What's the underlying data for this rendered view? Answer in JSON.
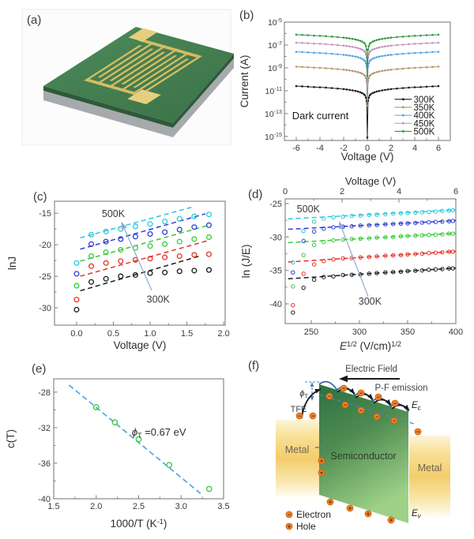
{
  "panel_a": {
    "label": "(a)",
    "description": "interdigitated-electrode device on green substrate"
  },
  "panel_f": {
    "label": "(f)",
    "electric_field": "Electric Field",
    "pf_emission": "P-F emission",
    "tfe": "TFE",
    "metal_left": "Metal",
    "metal_right": "Metal",
    "semiconductor": "Semiconductor",
    "ec_main": "E",
    "ec_sub": "c",
    "ev_main": "E",
    "ev_sub": "v",
    "phi_main": "ϕ",
    "phi_sub": "T",
    "legend_electron": "Electron",
    "legend_hole": "Hole",
    "electron_symbol": "−",
    "hole_symbol": "+"
  },
  "colors": {
    "k300": "#1c1c1c",
    "k350": "#b3966a",
    "k400": "#53a4e8",
    "k450": "#c78fc2",
    "k500": "#2f9a3c",
    "c_black": "#1c1c1c",
    "c_red": "#e83028",
    "c_green": "#37cc37",
    "c_blue": "#2f3bd4",
    "c_cyan": "#29c8dc",
    "fit_blue": "#58abe0",
    "arrow_blue": "#90a9d2",
    "orange": "#ef8125",
    "substrate_green": "#458053",
    "gold": "#d8bc60"
  },
  "chart_data": [
    {
      "id": "b",
      "type": "line",
      "panel_label": "(b)",
      "label_pos": [
        3,
        16
      ],
      "size": [
        300,
        214
      ],
      "plot": [
        60,
        20,
        210,
        150
      ],
      "xlim": [
        -7,
        7
      ],
      "ylim": [
        -15.35,
        -5.0
      ],
      "xticks": [
        -6,
        -4,
        -2,
        0,
        2,
        4,
        6
      ],
      "xminor": [
        -5,
        -3,
        -1,
        1,
        3,
        5
      ],
      "ylog": true,
      "yticks": [
        -5,
        -7,
        -9,
        -11,
        -13,
        -15
      ],
      "yminor": [
        -6,
        -8,
        -10,
        -12,
        -14
      ],
      "xlabel": "Voltage (V)",
      "xlabel_y": 195,
      "xtick_y": 183,
      "ylabel": "Current (A)",
      "ylabel_x": 14,
      "connect": true,
      "marker": "square",
      "msize": 2.3,
      "mstroke": 1,
      "x": [
        -6,
        -5.5,
        -5,
        -4.5,
        -4,
        -3.5,
        -3,
        -2.5,
        -2,
        -1.75,
        -1.5,
        -1.25,
        -1,
        -0.8,
        -0.6,
        -0.45,
        -0.3,
        -0.2,
        -0.12,
        -0.06,
        0,
        0.06,
        0.12,
        0.2,
        0.3,
        0.45,
        0.6,
        0.8,
        1,
        1.25,
        1.5,
        1.75,
        2,
        2.5,
        3,
        3.5,
        4,
        4.5,
        5,
        5.5,
        6
      ],
      "series": [
        {
          "name": "300K",
          "color": "#1c1c1c",
          "y": [
            -10.6,
            -10.62,
            -10.65,
            -10.68,
            -10.7,
            -10.73,
            -10.77,
            -10.81,
            -10.86,
            -10.89,
            -10.93,
            -10.97,
            -11.02,
            -11.07,
            -11.14,
            -11.2,
            -11.3,
            -11.4,
            -11.6,
            -11.9,
            -15.1,
            -11.9,
            -11.6,
            -11.4,
            -11.3,
            -11.2,
            -11.14,
            -11.07,
            -11.02,
            -10.97,
            -10.93,
            -10.89,
            -10.86,
            -10.81,
            -10.77,
            -10.73,
            -10.7,
            -10.68,
            -10.65,
            -10.62,
            -10.6
          ]
        },
        {
          "name": "350K",
          "color": "#b3966a",
          "y": [
            -8.9,
            -8.92,
            -8.95,
            -8.98,
            -9.0,
            -9.03,
            -9.07,
            -9.11,
            -9.16,
            -9.19,
            -9.23,
            -9.27,
            -9.32,
            -9.37,
            -9.44,
            -9.5,
            -9.6,
            -9.7,
            -9.9,
            -10.2,
            -12.3,
            -10.2,
            -9.9,
            -9.7,
            -9.6,
            -9.5,
            -9.44,
            -9.37,
            -9.32,
            -9.27,
            -9.23,
            -9.19,
            -9.16,
            -9.11,
            -9.07,
            -9.03,
            -9.0,
            -8.98,
            -8.95,
            -8.92,
            -8.9
          ]
        },
        {
          "name": "400K",
          "color": "#53a4e8",
          "y": [
            -7.6,
            -7.62,
            -7.65,
            -7.68,
            -7.7,
            -7.73,
            -7.77,
            -7.81,
            -7.86,
            -7.89,
            -7.93,
            -7.97,
            -8.02,
            -8.07,
            -8.14,
            -8.2,
            -8.3,
            -8.4,
            -8.6,
            -8.9,
            -11.2,
            -8.9,
            -8.6,
            -8.4,
            -8.3,
            -8.2,
            -8.14,
            -8.07,
            -8.02,
            -7.97,
            -7.93,
            -7.89,
            -7.86,
            -7.81,
            -7.77,
            -7.73,
            -7.7,
            -7.68,
            -7.65,
            -7.62,
            -7.6
          ]
        },
        {
          "name": "450K",
          "color": "#c78fc2",
          "y": [
            -6.8,
            -6.82,
            -6.85,
            -6.88,
            -6.9,
            -6.93,
            -6.97,
            -7.01,
            -7.06,
            -7.09,
            -7.13,
            -7.17,
            -7.22,
            -7.27,
            -7.34,
            -7.4,
            -7.5,
            -7.6,
            -7.8,
            -8.1,
            -10.5,
            -8.1,
            -7.8,
            -7.6,
            -7.5,
            -7.4,
            -7.34,
            -7.27,
            -7.22,
            -7.17,
            -7.13,
            -7.09,
            -7.06,
            -7.01,
            -6.97,
            -6.93,
            -6.9,
            -6.88,
            -6.85,
            -6.82,
            -6.8
          ]
        },
        {
          "name": "500K",
          "color": "#2f9a3c",
          "y": [
            -6.1,
            -6.12,
            -6.15,
            -6.18,
            -6.2,
            -6.23,
            -6.27,
            -6.31,
            -6.36,
            -6.39,
            -6.43,
            -6.47,
            -6.52,
            -6.57,
            -6.64,
            -6.7,
            -6.8,
            -6.9,
            -7.1,
            -7.4,
            -9.7,
            -7.4,
            -7.1,
            -6.9,
            -6.8,
            -6.7,
            -6.64,
            -6.57,
            -6.52,
            -6.47,
            -6.43,
            -6.39,
            -6.36,
            -6.31,
            -6.27,
            -6.23,
            -6.2,
            -6.18,
            -6.15,
            -6.12,
            -6.1
          ]
        }
      ],
      "texts": [
        {
          "text": "Dark current",
          "x": -6.35,
          "y": -13.5,
          "size": 13,
          "anchor": "start",
          "color": "#1a1a1a"
        }
      ],
      "legend": {
        "line_x": [
          2.3,
          3.75
        ],
        "text_x": 3.9,
        "font": 11.5,
        "rows": [
          {
            "label": "300K",
            "color": "#1c1c1c",
            "y": -11.75
          },
          {
            "label": "350K",
            "color": "#b3966a",
            "y": -12.45
          },
          {
            "label": "400K",
            "color": "#53a4e8",
            "y": -13.15
          },
          {
            "label": "450K",
            "color": "#c78fc2",
            "y": -13.85
          },
          {
            "label": "500K",
            "color": "#2f9a3c",
            "y": -14.55
          }
        ]
      }
    },
    {
      "id": "c",
      "type": "scatter",
      "panel_label": "(c)",
      "label_pos": [
        42,
        32
      ],
      "size": [
        300,
        230
      ],
      "plot": [
        69,
        33,
        216,
        157
      ],
      "xlim": [
        -0.3,
        2.02
      ],
      "ylim": [
        -32.75,
        -13.1
      ],
      "xticks": [
        0,
        0.5,
        1,
        1.5,
        2
      ],
      "xtick_labels": [
        "0.0",
        "0.5",
        "1.0",
        "1.5",
        "2.0"
      ],
      "xminor": [
        0.25,
        0.75,
        1.25,
        1.75
      ],
      "yticks": [
        -15,
        -20,
        -25,
        -30
      ],
      "yminor": [
        -17.5,
        -22.5,
        -27.5
      ],
      "xlabel": "Voltage (V)",
      "xlabel_y": 220,
      "xtick_y": 204,
      "ylabel": "lnJ",
      "ylabel_x": 20,
      "marker": "circle",
      "msize": 2.9,
      "mstroke": 1.3,
      "x": [
        0,
        0.2,
        0.4,
        0.6,
        0.8,
        1.0,
        1.2,
        1.4,
        1.6,
        1.8
      ],
      "series": [
        {
          "name": "300K",
          "color": "#1c1c1c",
          "y": [
            -30.3,
            -25.9,
            -25.4,
            -25.0,
            -24.8,
            -24.5,
            -24.4,
            -24.2,
            -24.1,
            -24.0
          ]
        },
        {
          "name": "350K",
          "color": "#e83028",
          "y": [
            -28.7,
            -23.4,
            -22.9,
            -22.6,
            -22.4,
            -22.2,
            -22.0,
            -21.8,
            -21.6,
            -21.5
          ]
        },
        {
          "name": "400K",
          "color": "#37cc37",
          "y": [
            -26.5,
            -21.8,
            -21.2,
            -20.8,
            -20.5,
            -20.2,
            -19.9,
            -19.5,
            -19.1,
            -18.8
          ]
        },
        {
          "name": "450K",
          "color": "#2f3bd4",
          "y": [
            -24.6,
            -19.9,
            -19.5,
            -19.1,
            -18.7,
            -18.3,
            -18.0,
            -17.6,
            -17.2,
            -16.9
          ]
        },
        {
          "name": "500K",
          "color": "#29c8dc",
          "y": [
            -22.9,
            -18.4,
            -17.9,
            -17.5,
            -17.1,
            -16.7,
            -16.3,
            -15.9,
            -15.5,
            -15.2
          ]
        }
      ],
      "fits": [
        {
          "x1": 0.05,
          "y1": -27.3,
          "x2": 1.7,
          "y2": -21.7,
          "color": "#1c1c1c"
        },
        {
          "x1": 0.05,
          "y1": -25.0,
          "x2": 1.8,
          "y2": -19.3,
          "color": "#e83028"
        },
        {
          "x1": 0.05,
          "y1": -22.6,
          "x2": 1.8,
          "y2": -16.9,
          "color": "#37cc37"
        },
        {
          "x1": 0.05,
          "y1": -20.7,
          "x2": 1.75,
          "y2": -15.1,
          "color": "#2f3bd4"
        },
        {
          "x1": 0.05,
          "y1": -18.9,
          "x2": 1.58,
          "y2": -14.0,
          "color": "#29c8dc"
        }
      ],
      "texts": [
        {
          "text": "500K",
          "x": 0.5,
          "y": -15.6,
          "size": 12.5,
          "anchor": "middle",
          "color": "#3a3a3a"
        },
        {
          "text": "300K",
          "x": 1.11,
          "y": -29.2,
          "size": 12.5,
          "anchor": "middle",
          "color": "#3a3a3a"
        }
      ],
      "arrows": [
        {
          "x1": 1.02,
          "y1": -27.2,
          "x2": 0.61,
          "y2": -16.4,
          "color": "#90a9d2"
        }
      ]
    },
    {
      "id": "d",
      "type": "scatter",
      "panel_label": "(d)",
      "label_pos": [
        14,
        29
      ],
      "size": [
        300,
        230
      ],
      "plot": [
        61,
        30,
        216,
        158
      ],
      "xlim": [
        223,
        400
      ],
      "ylim": [
        -42.95,
        -24.3
      ],
      "xticks": [
        250,
        300,
        350,
        400
      ],
      "xminor": [
        275,
        325,
        375
      ],
      "yticks": [
        -25,
        -30,
        -35,
        -40
      ],
      "yminor": [
        -27.5,
        -32.5,
        -37.5
      ],
      "xlabel_parts": [
        {
          "t": "E",
          "italic": true
        },
        {
          "t": "1/2",
          "sup": true
        },
        {
          "t": " (V/cm)"
        },
        {
          "t": "1/2",
          "sup": true
        }
      ],
      "xlabel_y": 221,
      "xtick_y": 202,
      "ylabel": "ln (J/E)",
      "ylabel_x": 16,
      "top_axis": {
        "label": "Voltage (V)",
        "label_y": 12,
        "ticks": [
          0,
          2,
          4,
          6
        ],
        "minor": [
          1,
          3,
          5
        ],
        "max": 6,
        "tick_y": 24
      },
      "marker": "circle",
      "msize": 2.2,
      "mstroke": 1.0,
      "x": [
        231,
        242,
        253,
        263,
        273,
        283,
        292,
        301,
        310,
        318,
        327,
        335,
        343,
        350,
        358,
        365,
        372,
        379,
        386,
        393,
        397
      ],
      "series": [
        {
          "name": "300K",
          "color": "#1c1c1c",
          "y": [
            -41.3,
            -37.6,
            -36.4,
            -36.0,
            -35.9,
            -35.7,
            -35.65,
            -35.6,
            -35.5,
            -35.4,
            -35.3,
            -35.25,
            -35.2,
            -35.1,
            -35.05,
            -35.0,
            -34.9,
            -34.85,
            -34.8,
            -34.7,
            -34.7
          ]
        },
        {
          "name": "350K",
          "color": "#e83028",
          "y": [
            -40.2,
            -35.5,
            -34.1,
            -33.6,
            -33.35,
            -33.2,
            -33.15,
            -33.05,
            -33.0,
            -32.9,
            -32.8,
            -32.75,
            -32.7,
            -32.6,
            -32.55,
            -32.5,
            -32.4,
            -32.35,
            -32.3,
            -32.2,
            -32.2
          ]
        },
        {
          "name": "400K",
          "color": "#37cc37",
          "y": [
            -37.4,
            -32.7,
            -31.2,
            -30.75,
            -30.5,
            -30.4,
            -30.3,
            -30.25,
            -30.2,
            -30.1,
            -30.05,
            -30.0,
            -29.9,
            -29.85,
            -29.8,
            -29.75,
            -29.7,
            -29.65,
            -29.6,
            -29.5,
            -29.5
          ]
        },
        {
          "name": "450K",
          "color": "#2f3bd4",
          "y": [
            -35.3,
            -30.6,
            -29.2,
            -28.75,
            -28.55,
            -28.45,
            -28.4,
            -28.3,
            -28.25,
            -28.2,
            -28.1,
            -28.05,
            -28.0,
            -27.95,
            -27.9,
            -27.85,
            -27.8,
            -27.75,
            -27.7,
            -27.65,
            -27.6
          ]
        },
        {
          "name": "500K",
          "color": "#29c8dc",
          "y": [
            -33.8,
            -29.1,
            -27.7,
            -27.25,
            -27.05,
            -26.95,
            -26.85,
            -26.8,
            -26.7,
            -26.65,
            -26.6,
            -26.5,
            -26.45,
            -26.4,
            -26.35,
            -26.3,
            -26.25,
            -26.2,
            -26.1,
            -26.05,
            -26.0
          ]
        }
      ],
      "fits": [
        {
          "x1": 226,
          "y1": -36.25,
          "x2": 400,
          "y2": -34.65,
          "color": "#1c1c1c"
        },
        {
          "x1": 226,
          "y1": -33.75,
          "x2": 400,
          "y2": -32.15,
          "color": "#e83028"
        },
        {
          "x1": 226,
          "y1": -30.85,
          "x2": 400,
          "y2": -29.45,
          "color": "#37cc37"
        },
        {
          "x1": 226,
          "y1": -28.85,
          "x2": 400,
          "y2": -27.55,
          "color": "#2f3bd4"
        },
        {
          "x1": 226,
          "y1": -27.3,
          "x2": 400,
          "y2": -25.95,
          "color": "#29c8dc"
        }
      ],
      "texts": [
        {
          "text": "500K",
          "x": 247,
          "y": -26.3,
          "size": 12.5,
          "anchor": "middle",
          "color": "#3a3a3a"
        },
        {
          "text": "300K",
          "x": 311,
          "y": -40.1,
          "size": 12.5,
          "anchor": "middle",
          "color": "#3a3a3a"
        }
      ],
      "arrows": [
        {
          "x1": 309,
          "y1": -38.9,
          "x2": 279,
          "y2": -27.7,
          "color": "#90a9d2"
        }
      ]
    },
    {
      "id": "e",
      "type": "scatter",
      "panel_label": "(e)",
      "label_pos": [
        40,
        20
      ],
      "size": [
        300,
        231
      ],
      "plot": [
        68,
        28,
        215,
        152
      ],
      "xlim": [
        1.5,
        3.5
      ],
      "ylim": [
        -40,
        -26.5
      ],
      "xticks": [
        1.5,
        2.0,
        2.5,
        3.0,
        3.5
      ],
      "xtick_labels": [
        "1.5",
        "2.0",
        "2.5",
        "3.0",
        "3.5"
      ],
      "xminor": [
        1.75,
        2.25,
        2.75,
        3.25
      ],
      "yticks": [
        -28,
        -32,
        -36,
        -40
      ],
      "yminor": [
        -30,
        -34,
        -38
      ],
      "xlabel_parts": [
        {
          "t": "1000/T (K"
        },
        {
          "t": "-1",
          "sup": true
        },
        {
          "t": ")"
        }
      ],
      "xlabel_y": 216,
      "xtick_y": 193,
      "ylabel": "c(T)",
      "ylabel_x": 18,
      "marker": "circle",
      "msize": 3.2,
      "mstroke": 1.4,
      "x": [
        2.0,
        2.22,
        2.5,
        2.86,
        3.33
      ],
      "series": [
        {
          "name": "c(T)",
          "color": "#43c843",
          "y": [
            -29.7,
            -31.4,
            -33.3,
            -36.2,
            -38.9
          ]
        }
      ],
      "fits": [
        {
          "x1": 1.68,
          "y1": -27.2,
          "x2": 3.24,
          "y2": -39.5,
          "color": "#58abe0",
          "width": 1.8,
          "dash": "7,4"
        }
      ],
      "texts": [
        {
          "parts": [
            {
              "t": "ϕ",
              "italic": true
            },
            {
              "t": "T",
              "sub": true
            },
            {
              "t": " =0.67 eV"
            }
          ],
          "x": 2.42,
          "y": -32.9,
          "size": 13,
          "anchor": "start",
          "color": "#2e2e2e"
        }
      ]
    }
  ]
}
